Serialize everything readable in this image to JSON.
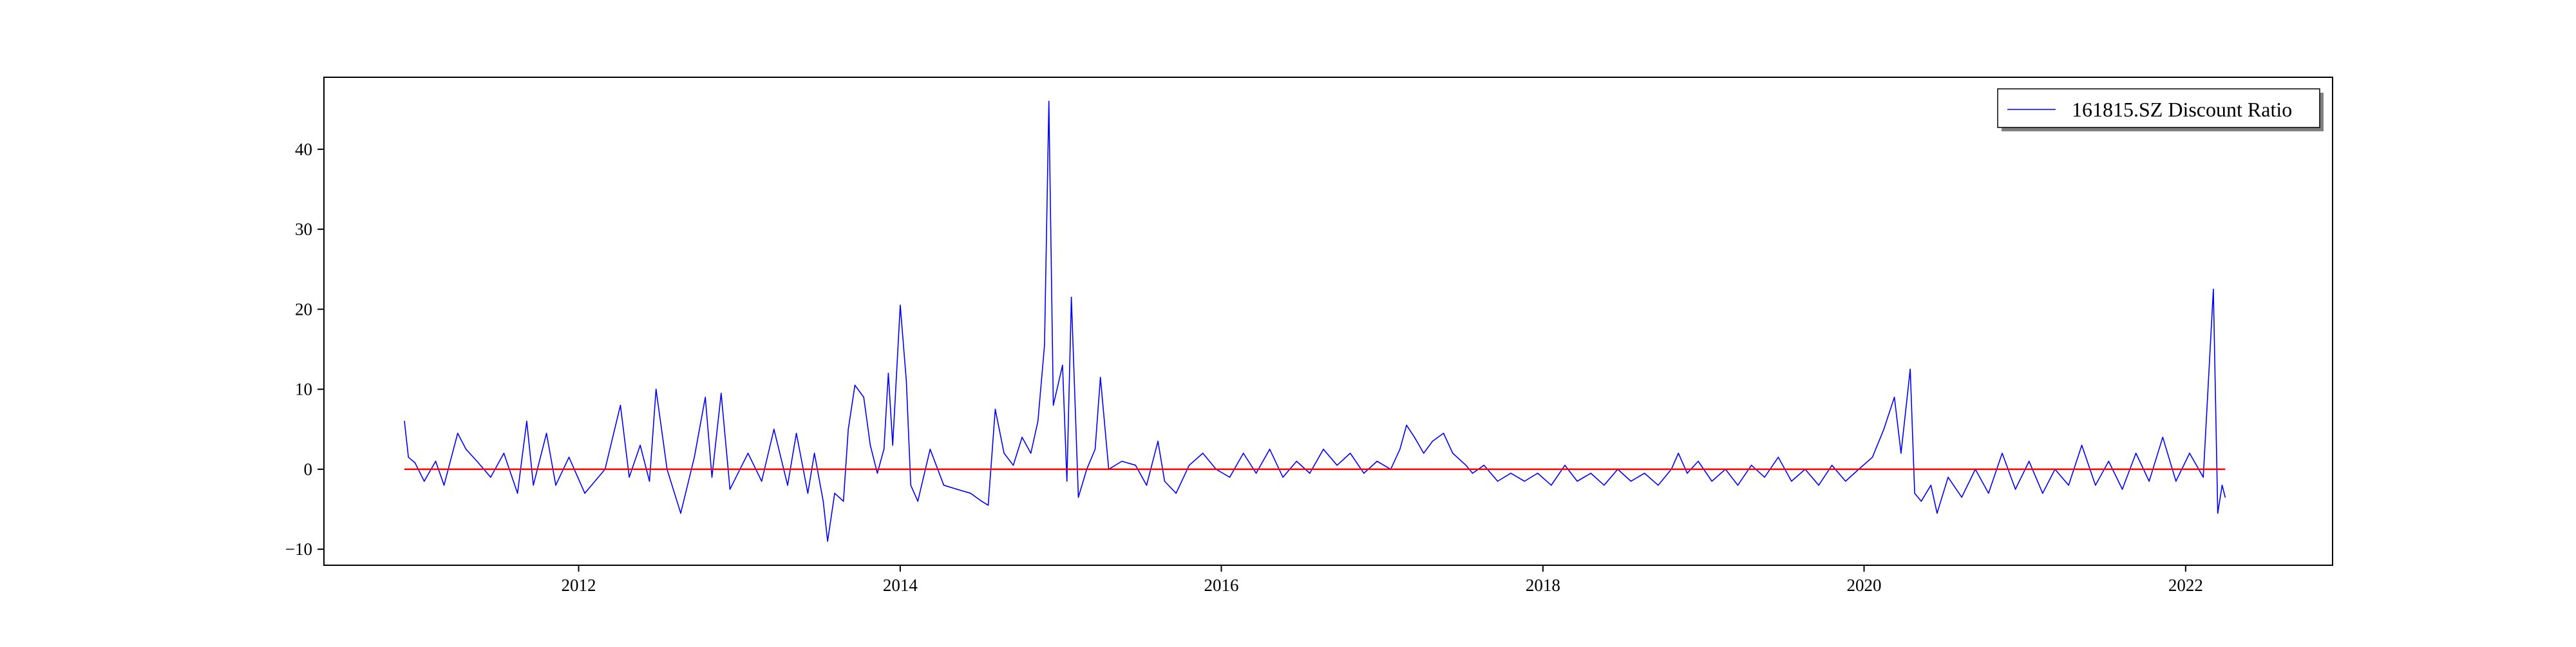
{
  "chart_data": {
    "type": "line",
    "title": "",
    "xlabel": "",
    "ylabel": "",
    "legend": {
      "location": "upper right",
      "entries": [
        "161815.SZ Discount Ratio"
      ]
    },
    "grid": false,
    "xlim": [
      "2010-06-01",
      "2022-12-01"
    ],
    "ylim": [
      -12,
      49
    ],
    "xticks": [
      "2012",
      "2014",
      "2016",
      "2018",
      "2020",
      "2022"
    ],
    "yticks": [
      -10,
      0,
      10,
      20,
      30,
      40
    ],
    "colors": {
      "series": "#0000ff",
      "reference_line": "#ff0000"
    },
    "reference_line": {
      "y": 0,
      "x_start": "2010-12-01",
      "x_end": "2022-04-01"
    },
    "series": [
      {
        "name": "161815.SZ Discount Ratio",
        "points": [
          [
            "2010-12-01",
            6.0
          ],
          [
            "2010-12-10",
            1.5
          ],
          [
            "2010-12-25",
            0.8
          ],
          [
            "2011-01-15",
            -1.5
          ],
          [
            "2011-02-10",
            1.0
          ],
          [
            "2011-03-01",
            -2.0
          ],
          [
            "2011-04-01",
            4.5
          ],
          [
            "2011-04-20",
            2.5
          ],
          [
            "2011-05-15",
            1.0
          ],
          [
            "2011-06-15",
            -1.0
          ],
          [
            "2011-07-15",
            2.0
          ],
          [
            "2011-08-15",
            -3.0
          ],
          [
            "2011-09-05",
            6.0
          ],
          [
            "2011-09-20",
            -2.0
          ],
          [
            "2011-10-20",
            4.5
          ],
          [
            "2011-11-10",
            -2.0
          ],
          [
            "2011-12-10",
            1.5
          ],
          [
            "2012-01-15",
            -3.0
          ],
          [
            "2012-03-01",
            0.0
          ],
          [
            "2012-04-05",
            8.0
          ],
          [
            "2012-04-25",
            -1.0
          ],
          [
            "2012-05-20",
            3.0
          ],
          [
            "2012-06-10",
            -1.5
          ],
          [
            "2012-06-25",
            10.0
          ],
          [
            "2012-07-20",
            0.0
          ],
          [
            "2012-08-20",
            -5.5
          ],
          [
            "2012-09-20",
            1.5
          ],
          [
            "2012-10-15",
            9.0
          ],
          [
            "2012-10-30",
            -1.0
          ],
          [
            "2012-11-20",
            9.5
          ],
          [
            "2012-12-10",
            -2.5
          ],
          [
            "2013-01-20",
            2.0
          ],
          [
            "2013-02-20",
            -1.5
          ],
          [
            "2013-03-20",
            5.0
          ],
          [
            "2013-04-20",
            -2.0
          ],
          [
            "2013-05-10",
            4.5
          ],
          [
            "2013-06-05",
            -3.0
          ],
          [
            "2013-06-20",
            2.0
          ],
          [
            "2013-07-10",
            -4.0
          ],
          [
            "2013-07-20",
            -9.0
          ],
          [
            "2013-08-05",
            -3.0
          ],
          [
            "2013-08-25",
            -4.0
          ],
          [
            "2013-09-05",
            5.0
          ],
          [
            "2013-09-20",
            10.5
          ],
          [
            "2013-10-10",
            9.0
          ],
          [
            "2013-10-25",
            3.0
          ],
          [
            "2013-11-10",
            -0.5
          ],
          [
            "2013-11-25",
            2.5
          ],
          [
            "2013-12-05",
            12.0
          ],
          [
            "2013-12-15",
            3.0
          ],
          [
            "2014-01-01",
            20.5
          ],
          [
            "2014-01-15",
            11.0
          ],
          [
            "2014-01-25",
            -2.0
          ],
          [
            "2014-02-10",
            -4.0
          ],
          [
            "2014-03-10",
            2.5
          ],
          [
            "2014-04-10",
            -2.0
          ],
          [
            "2014-05-10",
            -2.5
          ],
          [
            "2014-06-10",
            -3.0
          ],
          [
            "2014-07-05",
            -4.0
          ],
          [
            "2014-07-20",
            -4.5
          ],
          [
            "2014-08-05",
            7.5
          ],
          [
            "2014-08-25",
            2.0
          ],
          [
            "2014-09-15",
            0.5
          ],
          [
            "2014-10-05",
            4.0
          ],
          [
            "2014-10-25",
            2.0
          ],
          [
            "2014-11-10",
            6.0
          ],
          [
            "2014-11-25",
            15.5
          ],
          [
            "2014-12-05",
            46.0
          ],
          [
            "2014-12-15",
            8.0
          ],
          [
            "2015-01-05",
            13.0
          ],
          [
            "2015-01-15",
            -1.5
          ],
          [
            "2015-01-25",
            21.5
          ],
          [
            "2015-02-10",
            -3.5
          ],
          [
            "2015-03-01",
            0.0
          ],
          [
            "2015-03-20",
            2.5
          ],
          [
            "2015-04-01",
            11.5
          ],
          [
            "2015-04-20",
            0.0
          ],
          [
            "2015-05-20",
            1.0
          ],
          [
            "2015-06-20",
            0.5
          ],
          [
            "2015-07-15",
            -2.0
          ],
          [
            "2015-08-10",
            3.5
          ],
          [
            "2015-08-25",
            -1.5
          ],
          [
            "2015-09-20",
            -3.0
          ],
          [
            "2015-10-20",
            0.5
          ],
          [
            "2015-11-20",
            2.0
          ],
          [
            "2015-12-20",
            0.0
          ],
          [
            "2016-01-20",
            -1.0
          ],
          [
            "2016-02-20",
            2.0
          ],
          [
            "2016-03-20",
            -0.5
          ],
          [
            "2016-04-20",
            2.5
          ],
          [
            "2016-05-20",
            -1.0
          ],
          [
            "2016-06-20",
            1.0
          ],
          [
            "2016-07-20",
            -0.5
          ],
          [
            "2016-08-20",
            2.5
          ],
          [
            "2016-09-20",
            0.5
          ],
          [
            "2016-10-20",
            2.0
          ],
          [
            "2016-11-20",
            -0.5
          ],
          [
            "2016-12-20",
            1.0
          ],
          [
            "2017-01-20",
            0.0
          ],
          [
            "2017-02-10",
            2.5
          ],
          [
            "2017-02-25",
            5.5
          ],
          [
            "2017-03-15",
            4.0
          ],
          [
            "2017-04-05",
            2.0
          ],
          [
            "2017-04-25",
            3.5
          ],
          [
            "2017-05-20",
            4.5
          ],
          [
            "2017-06-10",
            2.0
          ],
          [
            "2017-07-10",
            0.5
          ],
          [
            "2017-07-25",
            -0.5
          ],
          [
            "2017-08-20",
            0.5
          ],
          [
            "2017-09-20",
            -1.5
          ],
          [
            "2017-10-20",
            -0.5
          ],
          [
            "2017-11-20",
            -1.5
          ],
          [
            "2017-12-20",
            -0.5
          ],
          [
            "2018-01-20",
            -2.0
          ],
          [
            "2018-02-20",
            0.5
          ],
          [
            "2018-03-20",
            -1.5
          ],
          [
            "2018-04-20",
            -0.5
          ],
          [
            "2018-05-20",
            -2.0
          ],
          [
            "2018-06-20",
            0.0
          ],
          [
            "2018-07-20",
            -1.5
          ],
          [
            "2018-08-20",
            -0.5
          ],
          [
            "2018-09-20",
            -2.0
          ],
          [
            "2018-10-20",
            0.0
          ],
          [
            "2018-11-05",
            2.0
          ],
          [
            "2018-11-25",
            -0.5
          ],
          [
            "2018-12-20",
            1.0
          ],
          [
            "2019-01-20",
            -1.5
          ],
          [
            "2019-02-20",
            0.0
          ],
          [
            "2019-03-20",
            -2.0
          ],
          [
            "2019-04-20",
            0.5
          ],
          [
            "2019-05-20",
            -1.0
          ],
          [
            "2019-06-20",
            1.5
          ],
          [
            "2019-07-20",
            -1.5
          ],
          [
            "2019-08-20",
            0.0
          ],
          [
            "2019-09-20",
            -2.0
          ],
          [
            "2019-10-20",
            0.5
          ],
          [
            "2019-11-20",
            -1.5
          ],
          [
            "2019-12-20",
            0.0
          ],
          [
            "2020-01-20",
            1.5
          ],
          [
            "2020-02-15",
            5.0
          ],
          [
            "2020-03-10",
            9.0
          ],
          [
            "2020-03-25",
            2.0
          ],
          [
            "2020-04-15",
            12.5
          ],
          [
            "2020-04-25",
            -3.0
          ],
          [
            "2020-05-10",
            -4.0
          ],
          [
            "2020-06-01",
            -2.0
          ],
          [
            "2020-06-15",
            -5.5
          ],
          [
            "2020-07-10",
            -1.0
          ],
          [
            "2020-08-10",
            -3.5
          ],
          [
            "2020-09-10",
            0.0
          ],
          [
            "2020-10-10",
            -3.0
          ],
          [
            "2020-11-10",
            2.0
          ],
          [
            "2020-12-10",
            -2.5
          ],
          [
            "2021-01-10",
            1.0
          ],
          [
            "2021-02-10",
            -3.0
          ],
          [
            "2021-03-10",
            0.0
          ],
          [
            "2021-04-10",
            -2.0
          ],
          [
            "2021-05-10",
            3.0
          ],
          [
            "2021-06-10",
            -2.0
          ],
          [
            "2021-07-10",
            1.0
          ],
          [
            "2021-08-10",
            -2.5
          ],
          [
            "2021-09-10",
            2.0
          ],
          [
            "2021-10-10",
            -1.5
          ],
          [
            "2021-11-10",
            4.0
          ],
          [
            "2021-12-10",
            -1.5
          ],
          [
            "2022-01-10",
            2.0
          ],
          [
            "2022-02-10",
            -1.0
          ],
          [
            "2022-03-05",
            22.5
          ],
          [
            "2022-03-15",
            -5.5
          ],
          [
            "2022-03-25",
            -2.0
          ],
          [
            "2022-04-01",
            -3.5
          ]
        ]
      }
    ]
  }
}
